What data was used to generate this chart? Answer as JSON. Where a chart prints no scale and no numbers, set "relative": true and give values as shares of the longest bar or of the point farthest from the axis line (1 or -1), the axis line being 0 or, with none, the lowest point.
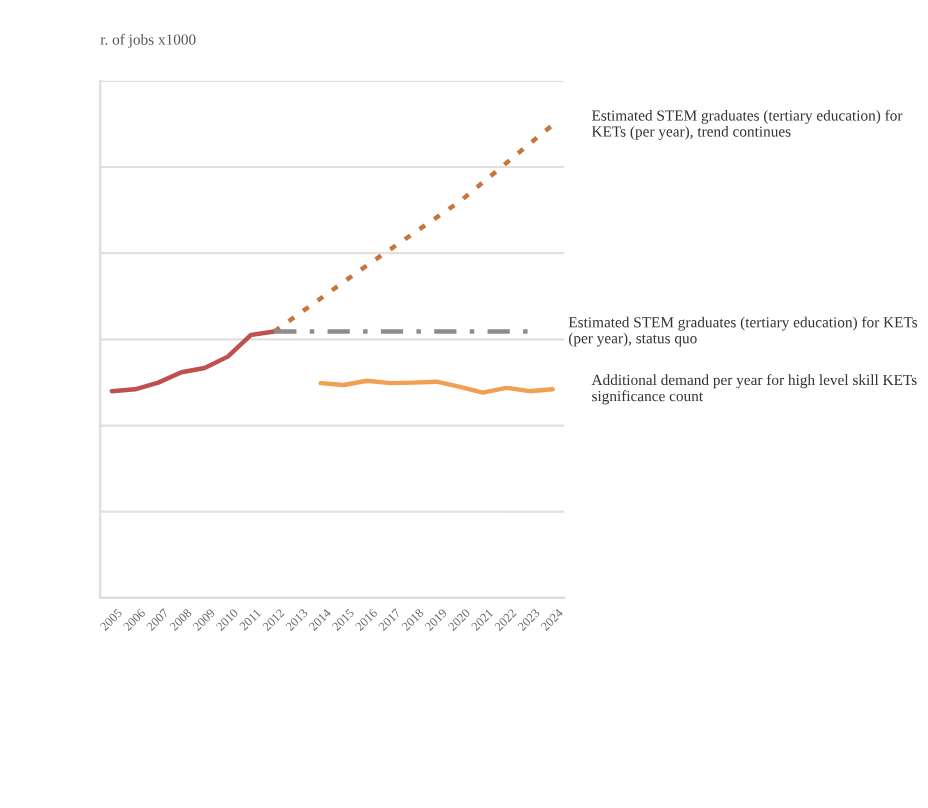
{
  "chart_data": {
    "type": "line",
    "annotations": [
      "r. of jobs x1000"
    ],
    "categories": [
      "2005",
      "2006",
      "2007",
      "2008",
      "2009",
      "2010",
      "2011",
      "2012",
      "2013",
      "2014",
      "2015",
      "2016",
      "2017",
      "2018",
      "2019",
      "2020",
      "2021",
      "2022",
      "2023",
      "2024"
    ],
    "series": [
      {
        "color": "#c0504d",
        "line_style": "solid",
        "values": [
          0.437,
          0.441,
          0.455,
          0.477,
          0.486,
          0.51,
          0.556,
          0.563,
          null,
          null,
          null,
          null,
          null,
          null,
          null,
          null,
          null,
          null,
          null,
          null
        ]
      },
      {
        "name": "Estimated STEM graduates (tertiary education) for KETs (per year), trend continues",
        "color": "#c8743a",
        "line_style": "dotted",
        "values": [
          null,
          null,
          null,
          null,
          null,
          null,
          null,
          0.563,
          null,
          null,
          null,
          0.703,
          null,
          null,
          null,
          0.838,
          null,
          null,
          null,
          1
        ]
      },
      {
        "name": "Estimated STEM graduates (tertiary education) for KETs (per year), status quo",
        "color": "#8c8c8c",
        "line_style": "dashdot",
        "values": [
          null,
          null,
          null,
          null,
          null,
          null,
          null,
          0.563,
          null,
          null,
          null,
          null,
          null,
          null,
          null,
          null,
          null,
          null,
          0.563,
          null
        ]
      },
      {
        "name": "Additional demand per year for high level skill KETs significance count",
        "color": "#f0a050",
        "line_style": "solid",
        "values": [
          null,
          null,
          null,
          null,
          null,
          null,
          null,
          null,
          null,
          0.454,
          0.45,
          0.459,
          0.454,
          0.455,
          0.457,
          0.446,
          0.434,
          0.444,
          0.437,
          0.441
        ]
      }
    ],
    "relative": true,
    "grid": "y",
    "legend": false
  }
}
